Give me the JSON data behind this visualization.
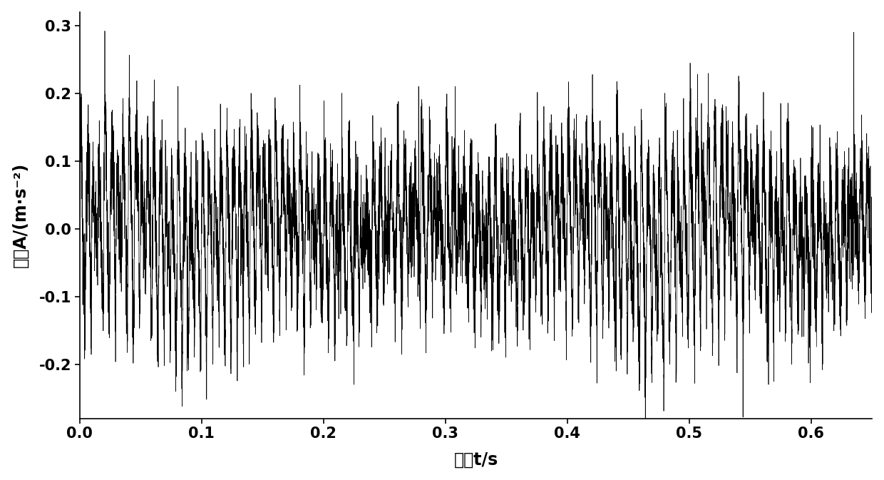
{
  "xlabel": "时间t/s",
  "ylabel": "幅值A/(m·s⁻²)",
  "xlim": [
    0,
    0.65
  ],
  "ylim": [
    -0.28,
    0.32
  ],
  "yticks": [
    -0.2,
    -0.1,
    0,
    0.1,
    0.2,
    0.3
  ],
  "xticks": [
    0,
    0.1,
    0.2,
    0.3,
    0.4,
    0.5,
    0.6
  ],
  "line_color": "#000000",
  "background_color": "#ffffff",
  "line_width": 0.5,
  "num_points": 8192,
  "duration": 0.65,
  "font_size_label": 17,
  "font_size_tick": 15
}
